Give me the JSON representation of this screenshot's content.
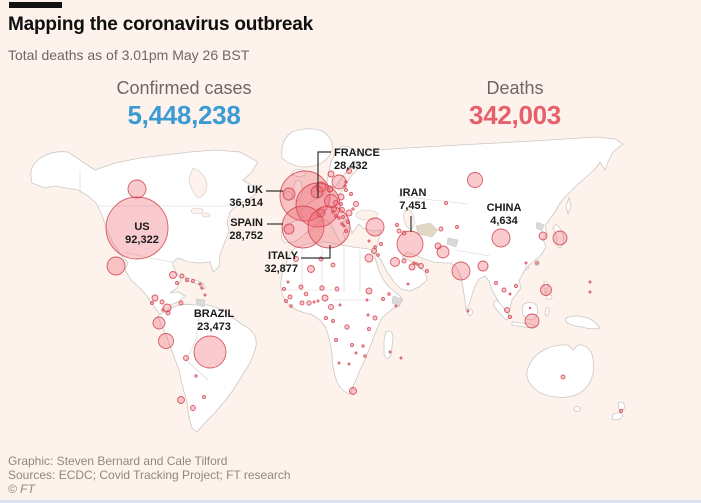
{
  "header": {
    "title": "Mapping the coronavirus outbreak",
    "subtitle": "Total deaths as of 3.01pm May 26 BST"
  },
  "stats": {
    "cases": {
      "label": "Confirmed cases",
      "value": "5,448,238"
    },
    "deaths": {
      "label": "Deaths",
      "value": "342,003"
    }
  },
  "chart_data": {
    "type": "bubble-map",
    "title": "Mapping the coronavirus outbreak",
    "subtitle": "Total deaths as of 3.01pm May 26 BST",
    "totals": {
      "confirmed_cases": "5,448,238",
      "deaths": "342,003"
    },
    "labeled_countries": [
      {
        "name": "US",
        "deaths": "92,322"
      },
      {
        "name": "BRAZIL",
        "deaths": "23,473"
      },
      {
        "name": "UK",
        "deaths": "36,914"
      },
      {
        "name": "SPAIN",
        "deaths": "28,752"
      },
      {
        "name": "FRANCE",
        "deaths": "28,432"
      },
      {
        "name": "ITALY",
        "deaths": "32,877"
      },
      {
        "name": "IRAN",
        "deaths": "7,451"
      },
      {
        "name": "CHINA",
        "deaths": "4,634"
      }
    ],
    "bubble_encoding": "x,y in screen px; circle area proportional to deaths",
    "bubbles": [
      [
        "us",
        137,
        228,
        31
      ],
      [
        "uk",
        305,
        196,
        25
      ],
      [
        "france",
        318,
        205,
        22
      ],
      [
        "spain",
        303,
        227,
        21
      ],
      [
        "italy",
        329,
        227,
        21
      ],
      [
        "brazil",
        210,
        352,
        16
      ],
      [
        "iran",
        410,
        244,
        13
      ],
      [
        "china",
        501,
        238,
        9
      ],
      [
        "canada",
        137,
        189,
        9
      ],
      [
        "mexico",
        116,
        266,
        9
      ],
      [
        "guatemala",
        155,
        298,
        3
      ],
      [
        "honduras",
        162,
        302,
        2
      ],
      [
        "el-salvador",
        152,
        303,
        1.5
      ],
      [
        "panama",
        168,
        313,
        2
      ],
      [
        "costa-rica",
        163,
        310,
        1.2
      ],
      [
        "cuba",
        173,
        275,
        3.5
      ],
      [
        "dominican-republic",
        182,
        276,
        2
      ],
      [
        "haiti",
        187,
        280,
        1.5
      ],
      [
        "jamaica",
        177,
        283,
        1.5
      ],
      [
        "puerto-rico",
        193,
        281,
        1.5
      ],
      [
        "guadeloupe",
        200,
        284,
        1.2
      ],
      [
        "martinique",
        202,
        288,
        1.2
      ],
      [
        "trinidad",
        205,
        295,
        1
      ],
      [
        "colombia",
        167,
        308,
        4
      ],
      [
        "venezuela",
        181,
        303,
        2
      ],
      [
        "ecuador",
        159,
        323,
        6
      ],
      [
        "peru",
        166,
        341,
        7.5
      ],
      [
        "bolivia",
        186,
        358,
        2.5
      ],
      [
        "chile",
        181,
        400,
        3.5
      ],
      [
        "argentina",
        193,
        408,
        2.5
      ],
      [
        "uruguay",
        204,
        397,
        1.5
      ],
      [
        "paraguay",
        196,
        376,
        1.2
      ],
      [
        "ireland",
        289,
        194,
        6
      ],
      [
        "portugal",
        289,
        229,
        5
      ],
      [
        "netherlands",
        321,
        187,
        5
      ],
      [
        "belgium",
        317,
        192,
        6
      ],
      [
        "germany",
        331,
        201,
        6.5
      ],
      [
        "switzerland",
        321,
        213,
        4
      ],
      [
        "sweden",
        339,
        182,
        7
      ],
      [
        "norway",
        331,
        174,
        3
      ],
      [
        "denmark",
        330,
        189,
        3
      ],
      [
        "finland",
        349,
        171,
        2.5
      ],
      [
        "poland",
        341,
        197,
        3
      ],
      [
        "czech-republic",
        336,
        203,
        2.5
      ],
      [
        "austria",
        334,
        209,
        2.5
      ],
      [
        "hungary",
        342,
        210,
        2.5
      ],
      [
        "slovakia",
        341,
        204,
        1.5
      ],
      [
        "romania",
        349,
        213,
        3
      ],
      [
        "ukraine",
        356,
        204,
        2.5
      ],
      [
        "belarus",
        351,
        194,
        1.5
      ],
      [
        "lithuania",
        346,
        190,
        1.5
      ],
      [
        "latvia",
        345,
        186,
        1.2
      ],
      [
        "estonia",
        346,
        182,
        1.2
      ],
      [
        "moldova",
        353,
        209,
        1.2
      ],
      [
        "slovenia",
        333,
        212,
        1.2
      ],
      [
        "croatia",
        336,
        216,
        1.5
      ],
      [
        "bosnia",
        339,
        218,
        1.3
      ],
      [
        "serbia",
        343,
        217,
        1.5
      ],
      [
        "bulgaria",
        348,
        222,
        1.5
      ],
      [
        "albania",
        342,
        224,
        1.2
      ],
      [
        "north-macedonia",
        344,
        226,
        1
      ],
      [
        "greece",
        346,
        231,
        1.5
      ],
      [
        "russia",
        475,
        180,
        7.5
      ],
      [
        "turkey",
        375,
        227,
        9
      ],
      [
        "cyprus",
        369,
        241,
        1
      ],
      [
        "syria",
        381,
        244,
        1.5
      ],
      [
        "lebanon",
        375,
        247,
        1.3
      ],
      [
        "israel",
        374,
        251,
        2.5
      ],
      [
        "jordan",
        378,
        255,
        1.3
      ],
      [
        "egypt",
        369,
        258,
        4
      ],
      [
        "iraq",
        395,
        262,
        4.5
      ],
      [
        "kuwait",
        404,
        261,
        2
      ],
      [
        "saudi-arabia",
        412,
        267,
        3
      ],
      [
        "bahrain",
        414,
        263,
        1.2
      ],
      [
        "qatar",
        417,
        264,
        1.2
      ],
      [
        "uae",
        421,
        266,
        2.5
      ],
      [
        "oman",
        427,
        271,
        1.5
      ],
      [
        "yemen",
        408,
        284,
        1
      ],
      [
        "georgia",
        397,
        225,
        1.5
      ],
      [
        "armenia",
        399,
        231,
        2
      ],
      [
        "azerbaijan",
        404,
        233,
        2
      ],
      [
        "kazakhstan",
        446,
        203,
        1.5
      ],
      [
        "uzbekistan",
        441,
        229,
        2
      ],
      [
        "kyrgyzstan",
        457,
        227,
        1.5
      ],
      [
        "pakistan",
        443,
        252,
        6
      ],
      [
        "afghanistan",
        438,
        246,
        3
      ],
      [
        "india",
        461,
        271,
        9
      ],
      [
        "bangladesh",
        483,
        266,
        5
      ],
      [
        "sri-lanka",
        468,
        311,
        1
      ],
      [
        "myanmar",
        496,
        283,
        1.5
      ],
      [
        "thailand",
        504,
        290,
        2
      ],
      [
        "vietnam",
        516,
        286,
        1.5
      ],
      [
        "cambodia",
        510,
        294,
        1
      ],
      [
        "malaysia",
        507,
        310,
        2.5
      ],
      [
        "singapore",
        510,
        317,
        1.5
      ],
      [
        "indonesia",
        532,
        321,
        7
      ],
      [
        "philippines",
        546,
        290,
        5.5
      ],
      [
        "brunei",
        530,
        308,
        0.8
      ],
      [
        "japan",
        560,
        238,
        7
      ],
      [
        "south-korea",
        543,
        236,
        4
      ],
      [
        "taiwan",
        537,
        263,
        1.3
      ],
      [
        "hong-kong",
        526,
        263,
        1
      ],
      [
        "guam",
        590,
        282,
        1
      ],
      [
        "palau",
        590,
        292,
        1
      ],
      [
        "australia",
        563,
        377,
        2
      ],
      [
        "new-zealand",
        621,
        411,
        1.5
      ],
      [
        "morocco",
        296,
        259,
        2.5
      ],
      [
        "algeria",
        311,
        269,
        3.5
      ],
      [
        "tunisia",
        321,
        259,
        2
      ],
      [
        "libya",
        333,
        265,
        2
      ],
      [
        "mauritania",
        288,
        282,
        1
      ],
      [
        "senegal",
        284,
        289,
        1.5
      ],
      [
        "mali",
        301,
        287,
        2
      ],
      [
        "burkina-faso",
        306,
        294,
        1.8
      ],
      [
        "niger",
        322,
        288,
        2.2
      ],
      [
        "chad",
        337,
        289,
        2
      ],
      [
        "nigeria",
        325,
        298,
        3
      ],
      [
        "guinea",
        290,
        297,
        2
      ],
      [
        "sierra-leone",
        286,
        301,
        1.5
      ],
      [
        "liberia",
        291,
        306,
        1.3
      ],
      [
        "ivory-coast",
        302,
        303,
        2
      ],
      [
        "ghana",
        309,
        303,
        2.2
      ],
      [
        "togo",
        314,
        302,
        1
      ],
      [
        "benin",
        318,
        301,
        1
      ],
      [
        "cameroon",
        331,
        307,
        2.5
      ],
      [
        "gabon",
        326,
        318,
        1.5
      ],
      [
        "congo",
        333,
        321,
        1.5
      ],
      [
        "dr-congo",
        347,
        327,
        2.2
      ],
      [
        "central-african-republic",
        340,
        305,
        1
      ],
      [
        "sudan",
        369,
        291,
        3
      ],
      [
        "south-sudan",
        367,
        300,
        1
      ],
      [
        "ethiopia",
        383,
        299,
        1.5
      ],
      [
        "djibouti",
        389,
        294,
        1.3
      ],
      [
        "somalia",
        396,
        306,
        1
      ],
      [
        "uganda",
        368,
        315,
        1
      ],
      [
        "kenya",
        375,
        318,
        2
      ],
      [
        "tanzania",
        369,
        329,
        1.5
      ],
      [
        "angola",
        336,
        340,
        1.5
      ],
      [
        "zambia",
        352,
        345,
        1.5
      ],
      [
        "malawi",
        363,
        346,
        1.2
      ],
      [
        "zimbabwe",
        356,
        353,
        1
      ],
      [
        "mozambique",
        365,
        356,
        1.3
      ],
      [
        "namibia",
        339,
        363,
        1
      ],
      [
        "botswana",
        349,
        364,
        1
      ],
      [
        "south-africa",
        353,
        391,
        3.5
      ],
      [
        "madagascar",
        390,
        352,
        1
      ],
      [
        "mauritius",
        401,
        358,
        1
      ]
    ]
  },
  "colors": {
    "background": "#fdf3ec",
    "cases_blue": "#3d9bd4",
    "deaths_red": "#e5606a",
    "bubble_fill": "rgba(236,95,105,0.33)",
    "bubble_stroke": "rgba(210,65,78,0.85)"
  },
  "footer": {
    "credit": "Graphic: Steven Bernard and Cale Tilford",
    "sources": "Sources: ECDC; Covid Tracking Project; FT research",
    "copyright": "© FT"
  }
}
